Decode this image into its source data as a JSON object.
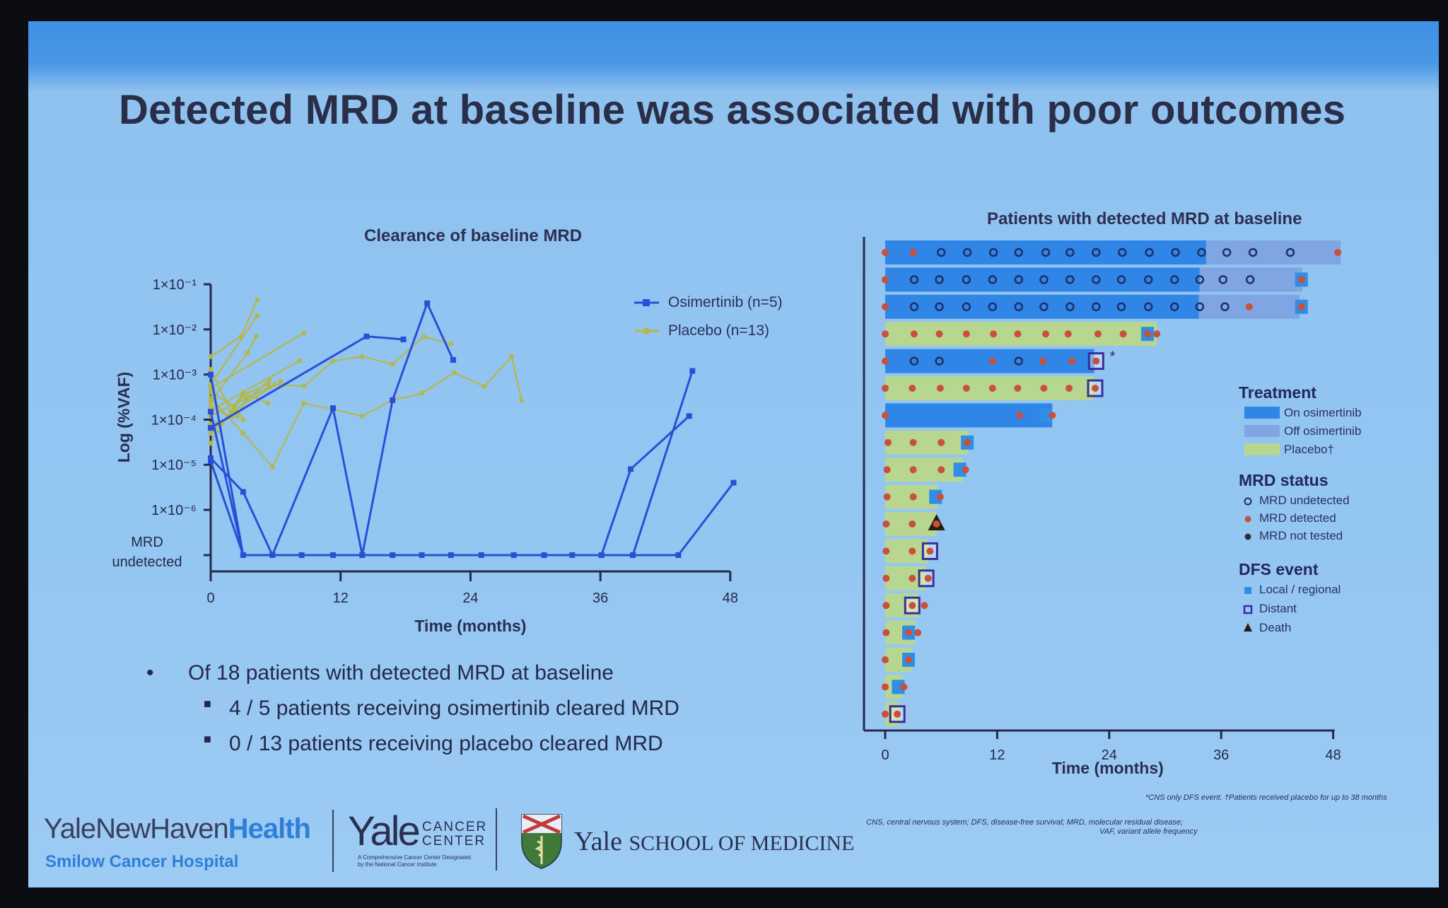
{
  "slide": {
    "title": "Detected MRD at baseline was associated with poor outcomes",
    "bullets": [
      {
        "level": 1,
        "text": "Of 18 patients with detected MRD at baseline"
      },
      {
        "level": 2,
        "text": "4 / 5 patients receiving osimertinib cleared MRD"
      },
      {
        "level": 2,
        "text": "0 / 13 patients receiving placebo cleared MRD"
      }
    ],
    "footnote_symbols": "*CNS only DFS event. †Patients received placebo for up to 38 months",
    "footnote_abbrev_1": "CNS, central nervous system; DFS, disease-free survival; MRD, molecular residual disease;",
    "footnote_abbrev_2": "VAF, variant allele frequency",
    "logos": {
      "ynhh_main": "YaleNewHaven",
      "ynhh_bold": "Health",
      "ynhh_sub": "Smilow Cancer Hospital",
      "ycc_main": "Yale",
      "ycc_side1": "CANCER",
      "ycc_side2": "CENTER",
      "ycc_sub1": "A Comprehensive Cancer Center Designated",
      "ycc_sub2": "by the National Cancer Institute",
      "ysm_main": "Yale",
      "ysm_rest": "SCHOOL OF MEDICINE"
    }
  },
  "colors": {
    "osimertinib_line": "#2a4fd6",
    "placebo_line": "#b3b84c",
    "on_osimertinib": "#2f86e6",
    "off_osimertinib": "#7fa6e2",
    "placebo_bar": "#b7d68f",
    "mrd_detected": "#c9503a",
    "mrd_undetected": "#1f2e6a",
    "mrd_not_tested": "#2a2f3f",
    "local_regional": "#2e8ee8",
    "distant": "#3a2f9a",
    "death": "#2a1a10"
  },
  "chart_data": [
    {
      "type": "line",
      "title": "Clearance of baseline MRD",
      "xlabel": "Time (months)",
      "ylabel": "Log (%VAF)",
      "xlim": [
        0,
        48
      ],
      "xticks": [
        "0",
        "12",
        "24",
        "36",
        "48"
      ],
      "y_scale": "log",
      "ylim": [
        1e-06,
        0.1
      ],
      "yticks": [
        "1×10⁻¹",
        "1×10⁻²",
        "1×10⁻³",
        "1×10⁻⁴",
        "1×10⁻⁵",
        "1×10⁻⁶"
      ],
      "y_undetected_label_1": "MRD",
      "y_undetected_label_2": "undetected",
      "legend_position": "top-right",
      "grid": false,
      "series": [
        {
          "name": "Osimertinib (n=5)",
          "marker": "square",
          "patients": [
            [
              [
                0,
                0.001
              ],
              [
                3,
                "undetected"
              ],
              [
                5.7,
                "undetected"
              ],
              [
                8.4,
                "undetected"
              ],
              [
                11.3,
                "undetected"
              ],
              [
                14,
                "undetected"
              ],
              [
                16.8,
                "undetected"
              ],
              [
                19.5,
                "undetected"
              ],
              [
                22.2,
                "undetected"
              ],
              [
                25,
                "undetected"
              ],
              [
                28,
                "undetected"
              ],
              [
                30.8,
                "undetected"
              ],
              [
                33.4,
                "undetected"
              ],
              [
                36.1,
                "undetected"
              ],
              [
                38.8,
                8e-06
              ],
              [
                44.2,
                0.00012
              ]
            ],
            [
              [
                0,
                6.6e-05
              ],
              [
                14.4,
                0.007
              ],
              [
                17.8,
                0.006
              ]
            ],
            [
              [
                0,
                1.4e-05
              ],
              [
                3,
                2.5e-06
              ],
              [
                5.7,
                "undetected"
              ],
              [
                11.3,
                0.00018
              ],
              [
                14,
                "undetected"
              ],
              [
                16.8,
                0.00027
              ],
              [
                20,
                0.038
              ],
              [
                22.4,
                0.0021
              ]
            ],
            [
              [
                0,
                1.2e-05
              ],
              [
                3,
                "undetected"
              ],
              [
                36.1,
                "undetected"
              ],
              [
                39,
                "undetected"
              ],
              [
                44.5,
                0.0012
              ]
            ],
            [
              [
                0,
                0.00015
              ],
              [
                3,
                "undetected"
              ],
              [
                39,
                "undetected"
              ],
              [
                43.2,
                "undetected"
              ],
              [
                48.3,
                4e-06
              ]
            ]
          ]
        },
        {
          "name": "Placebo (n=13)",
          "marker": "circle",
          "patients": [
            [
              [
                0,
                0.0003
              ],
              [
                3,
                5e-05
              ],
              [
                5.7,
                9e-06
              ],
              [
                8.6,
                0.00023
              ],
              [
                11.3,
                0.00017
              ],
              [
                14,
                0.00012
              ],
              [
                16.8,
                0.00027
              ],
              [
                19.5,
                0.00038
              ],
              [
                22.5,
                0.0011
              ],
              [
                25.3,
                0.00054
              ],
              [
                27.8,
                0.0025
              ],
              [
                28.7,
                0.00027
              ]
            ],
            [
              [
                0,
                0.00012
              ],
              [
                5.9,
                0.0006
              ],
              [
                8.6,
                0.00055
              ],
              [
                11.3,
                0.002
              ],
              [
                14,
                0.0025
              ],
              [
                16.8,
                0.0017
              ],
              [
                19.7,
                0.0069
              ],
              [
                22.2,
                0.0048
              ]
            ],
            [
              [
                0,
                0.0025
              ],
              [
                2.8,
                0.007
              ],
              [
                4.3,
                0.045
              ]
            ],
            [
              [
                0,
                0.0006
              ],
              [
                4.3,
                0.02
              ]
            ],
            [
              [
                0,
                0.00025
              ],
              [
                3.4,
                0.003
              ],
              [
                4.2,
                0.007
              ]
            ],
            [
              [
                0,
                0.0005
              ],
              [
                8.6,
                0.0083
              ]
            ],
            [
              [
                0,
                0.00016
              ],
              [
                8.2,
                0.002
              ]
            ],
            [
              [
                0,
                5e-05
              ],
              [
                5.4,
                0.00075
              ]
            ],
            [
              [
                0,
                3e-05
              ],
              [
                3,
                0.0004
              ],
              [
                5.3,
                0.00023
              ]
            ],
            [
              [
                0,
                0.0013
              ],
              [
                1.9,
                0.00015
              ],
              [
                6.5,
                0.0007
              ]
            ],
            [
              [
                0,
                0.0002
              ],
              [
                1.6,
                0.00012
              ],
              [
                3,
                0.00035
              ],
              [
                5.3,
                0.0006
              ]
            ],
            [
              [
                0,
                8e-05
              ],
              [
                2.5,
                0.00012
              ],
              [
                3.3,
                0.0003
              ]
            ],
            [
              [
                0,
                0.0004
              ],
              [
                2.2,
                0.0002
              ],
              [
                3,
                0.0001
              ]
            ]
          ]
        }
      ]
    },
    {
      "type": "swimmer",
      "title": "Patients with detected MRD at baseline",
      "xlabel": "Time (months)",
      "xlim": [
        0,
        48
      ],
      "xticks": [
        "0",
        "12",
        "24",
        "36",
        "48"
      ],
      "legend": {
        "treatment_title": "Treatment",
        "treatment": [
          "On osimertinib",
          "Off osimertinib",
          "Placebo†"
        ],
        "mrd_title": "MRD status",
        "mrd": [
          "MRD undetected",
          "MRD detected",
          "MRD not tested"
        ],
        "dfs_title": "DFS event",
        "dfs": [
          "Local / regional",
          "Distant",
          "Death"
        ]
      },
      "rows": [
        {
          "arm": "osimertinib",
          "on_end": 34.4,
          "end": 48.8,
          "D": [
            0,
            3,
            48.5
          ],
          "U": [
            6,
            8.8,
            11.6,
            14.3,
            17.2,
            19.8,
            22.6,
            25.4,
            28.3,
            31.1,
            33.9,
            36.6,
            39.4,
            43.4
          ]
        },
        {
          "arm": "osimertinib",
          "on_end": 33.7,
          "end": 44.7,
          "D": [
            0,
            44.6
          ],
          "U": [
            3.1,
            5.8,
            8.7,
            11.5,
            14.3,
            17,
            19.8,
            22.6,
            25.3,
            28.2,
            31,
            33.7,
            36.2,
            39.1
          ],
          "event": {
            "type": "local",
            "month": 44.6
          }
        },
        {
          "arm": "osimertinib",
          "on_end": 33.6,
          "end": 44.4,
          "D": [
            0,
            39,
            44.6
          ],
          "U": [
            3.1,
            5.8,
            8.7,
            11.5,
            14.3,
            17,
            19.8,
            22.6,
            25.3,
            28.2,
            31,
            33.7,
            36.4
          ],
          "event": {
            "type": "local",
            "month": 44.6
          }
        },
        {
          "arm": "placebo",
          "end": 29.1,
          "D": [
            0,
            3.1,
            5.8,
            8.7,
            11.6,
            14.2,
            17.2,
            19.6,
            22.8,
            25.5,
            28.1,
            29.1
          ],
          "U": [],
          "event": {
            "type": "local",
            "month": 28.1
          }
        },
        {
          "arm": "osimertinib",
          "on_end": 22.4,
          "end": 22.4,
          "D": [
            0,
            11.5,
            16.9,
            20,
            22.6
          ],
          "U": [
            3.1,
            5.8,
            14.3
          ],
          "event": {
            "type": "distant",
            "month": 22.6
          },
          "note": "*"
        },
        {
          "arm": "placebo",
          "end": 22.3,
          "D": [
            0,
            2.9,
            5.9,
            8.7,
            11.5,
            14.2,
            17,
            19.7,
            22.5
          ],
          "U": [],
          "event": {
            "type": "distant",
            "month": 22.5
          }
        },
        {
          "arm": "osimertinib",
          "on_end": 17.9,
          "end": 17.9,
          "D": [
            0,
            14.4,
            17.9
          ],
          "U": [],
          "event": {
            "type": "local",
            "month": 17.2
          }
        },
        {
          "arm": "placebo",
          "end": 8.9,
          "D": [
            0.3,
            3,
            6,
            8.8
          ],
          "U": [],
          "event": {
            "type": "local",
            "month": 8.8
          }
        },
        {
          "arm": "placebo",
          "end": 8.3,
          "D": [
            0.2,
            3,
            6,
            8.6
          ],
          "U": [],
          "event": {
            "type": "local",
            "month": 8
          }
        },
        {
          "arm": "placebo",
          "end": 5.6,
          "D": [
            0.2,
            3,
            5.9
          ],
          "U": [],
          "event": {
            "type": "local",
            "month": 5.4
          }
        },
        {
          "arm": "placebo",
          "end": 5.5,
          "D": [
            0.1,
            2.9,
            5.5
          ],
          "U": [],
          "event": {
            "type": "death",
            "month": 5.5
          }
        },
        {
          "arm": "placebo",
          "end": 4.6,
          "D": [
            0.1,
            2.9,
            4.8
          ],
          "U": [],
          "event": {
            "type": "distant",
            "month": 4.8
          }
        },
        {
          "arm": "placebo",
          "end": 4.3,
          "D": [
            0.1,
            2.9,
            4.6
          ],
          "U": [],
          "event": {
            "type": "distant",
            "month": 4.4
          }
        },
        {
          "arm": "placebo",
          "end": 3.6,
          "D": [
            0.1,
            2.9,
            4.2
          ],
          "U": [],
          "event": {
            "type": "distant",
            "month": 2.9
          }
        },
        {
          "arm": "placebo",
          "end": 3.2,
          "D": [
            0.1,
            2.5,
            3.5
          ],
          "U": [],
          "event": {
            "type": "local",
            "month": 2.5
          }
        },
        {
          "arm": "placebo",
          "end": 2.8,
          "D": [
            0,
            2.5
          ],
          "U": [],
          "event": {
            "type": "local",
            "month": 2.5
          }
        },
        {
          "arm": "placebo",
          "end": 1.9,
          "D": [
            0,
            2
          ],
          "U": [],
          "event": {
            "type": "local",
            "month": 1.4
          }
        },
        {
          "arm": "placebo",
          "end": 1.5,
          "D": [
            0,
            1.3
          ],
          "U": [],
          "event": {
            "type": "distant",
            "month": 1.3
          }
        }
      ]
    }
  ]
}
